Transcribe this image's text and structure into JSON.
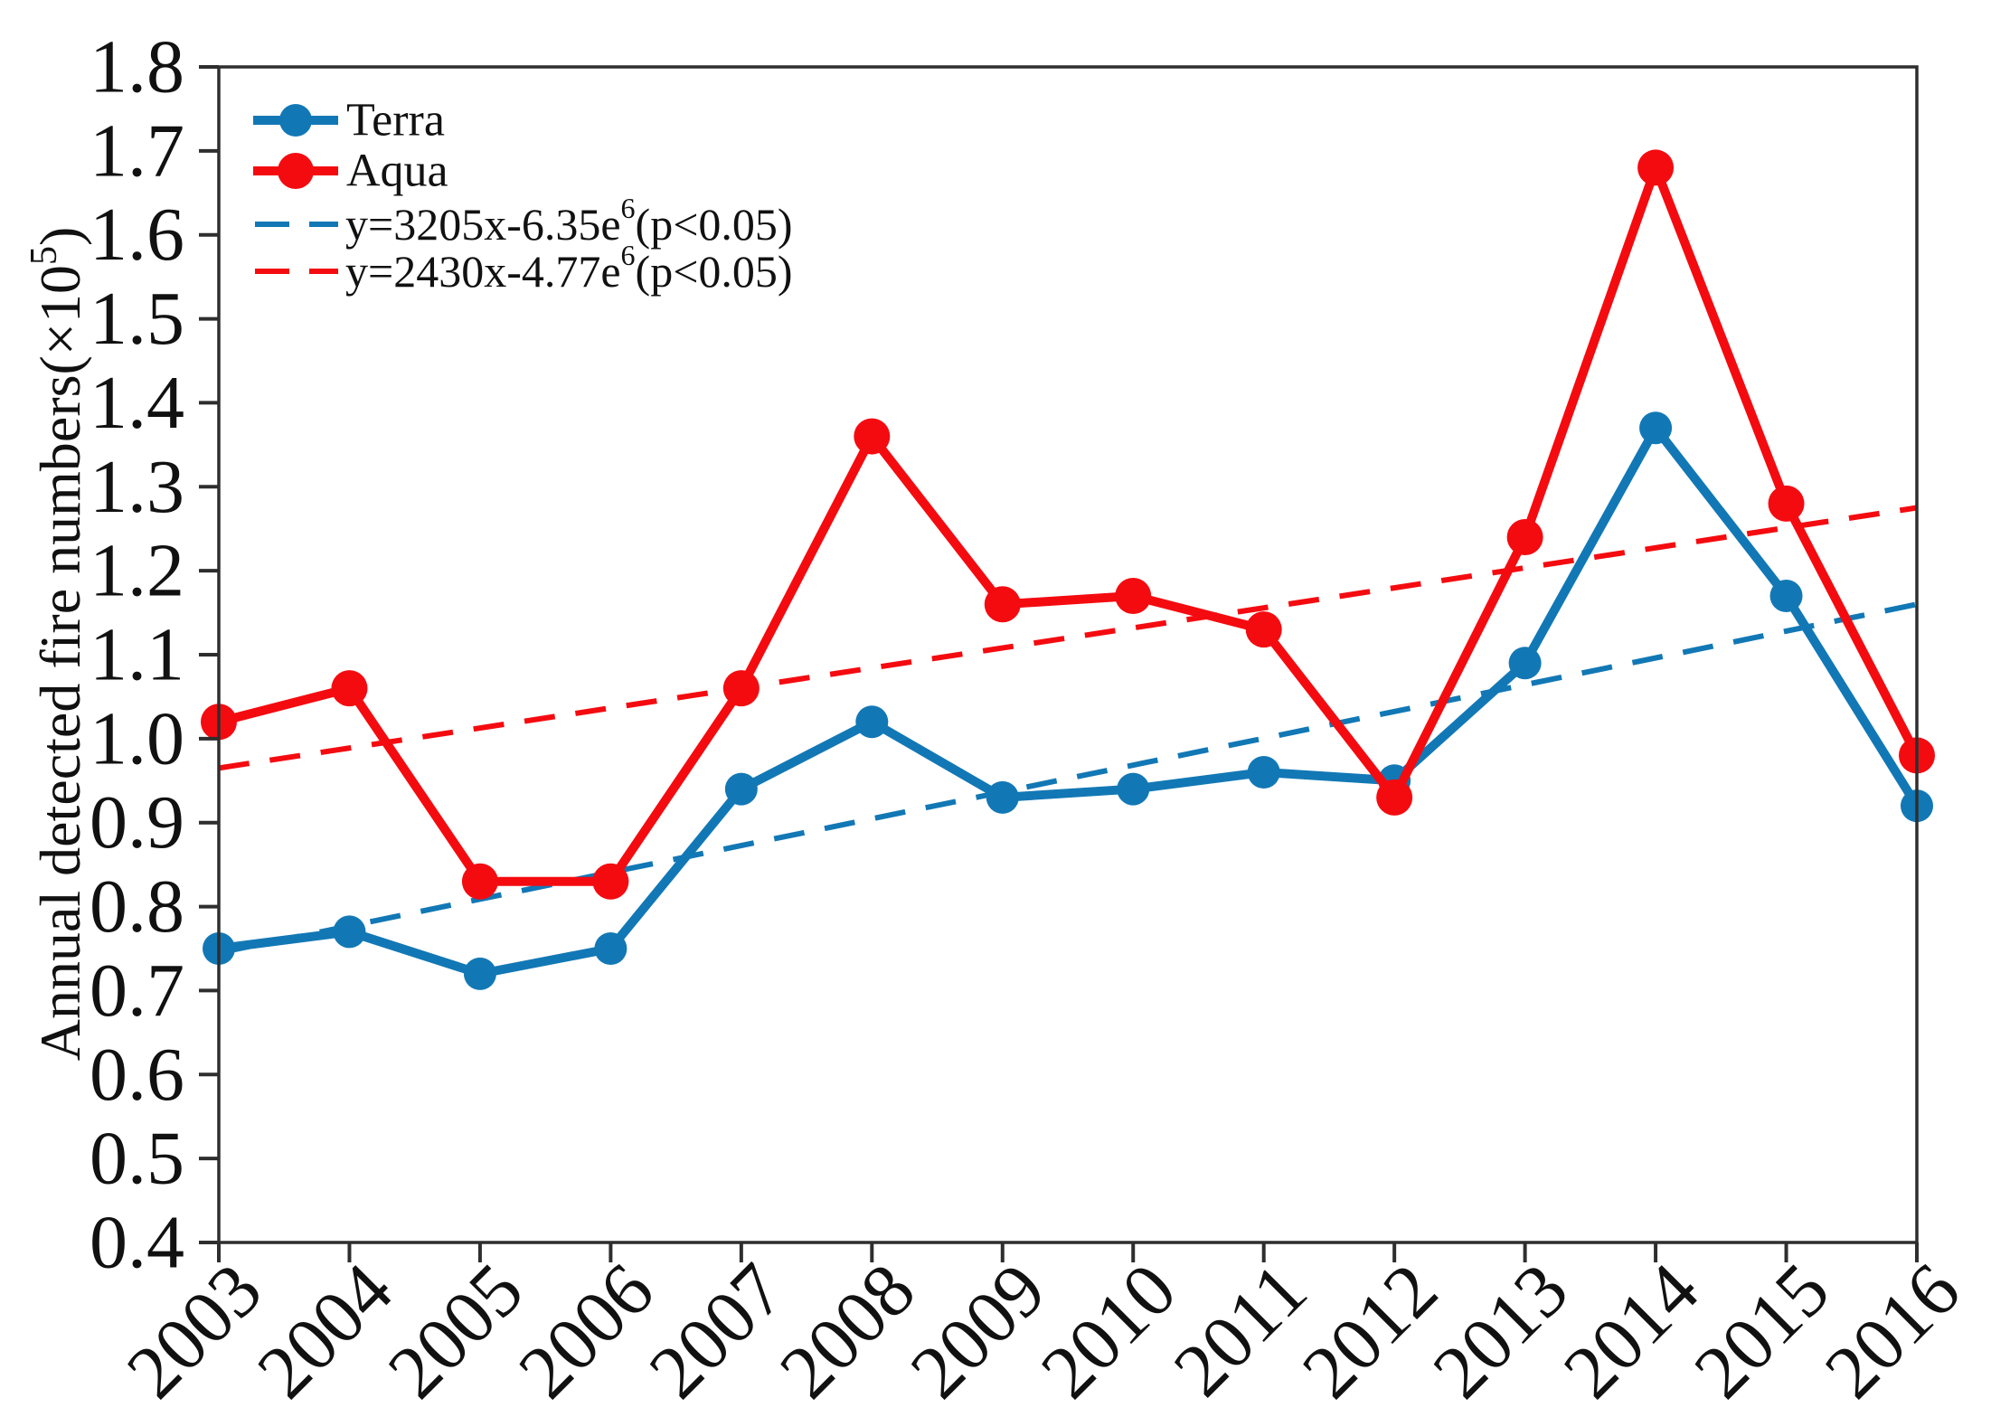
{
  "figure": {
    "background": "#ffffff",
    "axis_color": "#2e2e2e",
    "text_color": "#111111"
  },
  "chart_data": {
    "type": "line",
    "title": "",
    "xlabel": "",
    "ylabel": "Annual detected fire numbers(×10⁵)",
    "ylabel_parts": {
      "main": "Annual  detected fire numbers(×10",
      "sup": "5",
      "close": ")"
    },
    "x": [
      2003,
      2004,
      2005,
      2006,
      2007,
      2008,
      2009,
      2010,
      2011,
      2012,
      2013,
      2014,
      2015,
      2016
    ],
    "ylim": [
      0.4,
      1.8
    ],
    "ytick_step": 0.1,
    "ytick_labels": [
      "0.4",
      "0.5",
      "0.6",
      "0.7",
      "0.8",
      "0.9",
      "1.0",
      "1.1",
      "1.2",
      "1.3",
      "1.4",
      "1.5",
      "1.6",
      "1.7",
      "1.8"
    ],
    "grid": false,
    "legend_position": "top-left",
    "series": [
      {
        "name": "Terra",
        "color": "#1278b5",
        "marker": "circle",
        "marker_radius": 18,
        "values": [
          0.75,
          0.77,
          0.72,
          0.75,
          0.94,
          1.02,
          0.93,
          0.94,
          0.96,
          0.95,
          1.09,
          1.37,
          1.17,
          0.92
        ]
      },
      {
        "name": "Aqua",
        "color": "#f40b10",
        "marker": "circle",
        "marker_radius": 20,
        "values": [
          1.02,
          1.06,
          0.83,
          0.83,
          1.06,
          1.36,
          1.16,
          1.17,
          1.13,
          0.93,
          1.24,
          1.68,
          1.28,
          0.98
        ]
      }
    ],
    "trendlines": [
      {
        "series": "Terra",
        "equation": "y=3205x-6.35e6(p<0.05)",
        "eq_prefix": "y=3205x-6.35e",
        "eq_sup": "6",
        "eq_suffix": "(p<0.05)",
        "color": "#1278b5",
        "style": "dashed",
        "start_year": 2003,
        "start_value": 0.745,
        "end_year": 2016,
        "end_value": 1.16
      },
      {
        "series": "Aqua",
        "equation": "y=2430x-4.77e6(p<0.05)",
        "eq_prefix": "y=2430x-4.77e",
        "eq_sup": "6",
        "eq_suffix": "(p<0.05)",
        "color": "#f40b10",
        "style": "dashed",
        "start_year": 2003,
        "start_value": 0.965,
        "end_year": 2016,
        "end_value": 1.275
      }
    ]
  }
}
